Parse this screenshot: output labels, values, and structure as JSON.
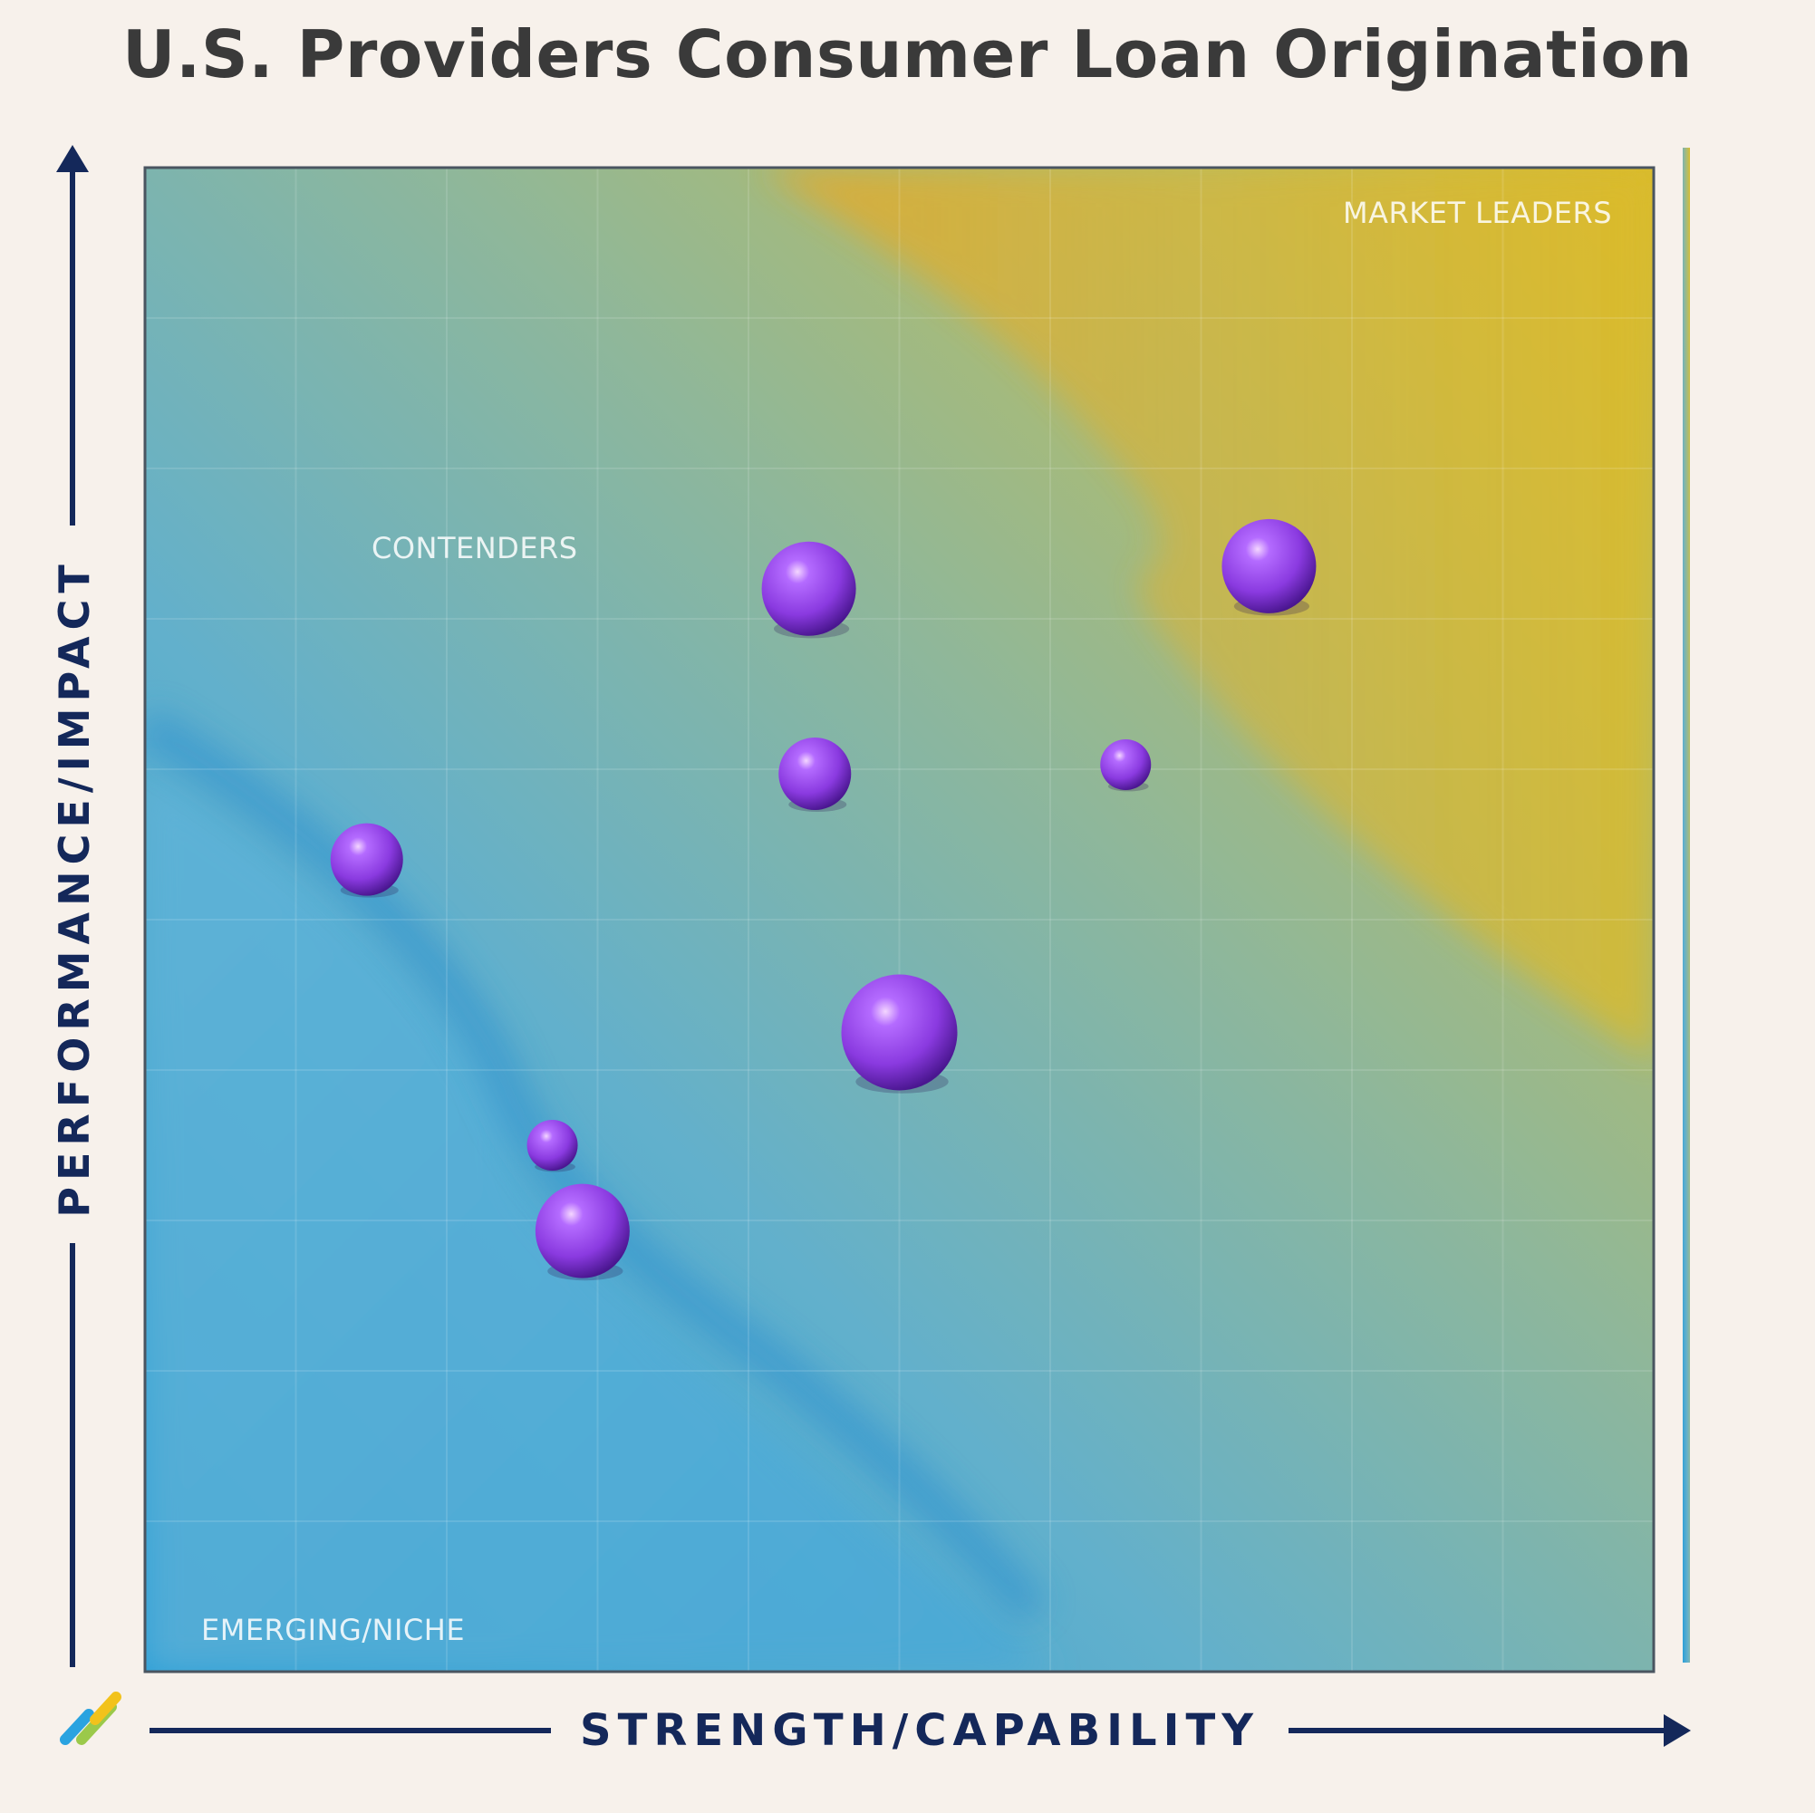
{
  "title": "U.S. Providers Consumer Loan Origination",
  "chart_data": {
    "type": "scatter",
    "title": "U.S. Providers Consumer Loan Origination",
    "xlabel": "STRENGTH/CAPABILITY",
    "ylabel": "PERFORMANCE/IMPACT",
    "xlim": [
      0,
      100
    ],
    "ylim": [
      0,
      100
    ],
    "zones": [
      "MARKET LEADERS",
      "CONTENDERS",
      "EMERGING/NICHE"
    ],
    "points": [
      {
        "x": 74.5,
        "y": 73.5,
        "size": 3
      },
      {
        "x": 44.0,
        "y": 72.0,
        "size": 3
      },
      {
        "x": 44.4,
        "y": 59.7,
        "size": 2
      },
      {
        "x": 65.0,
        "y": 60.3,
        "size": 1
      },
      {
        "x": 14.7,
        "y": 54.0,
        "size": 2
      },
      {
        "x": 50.0,
        "y": 42.5,
        "size": 4
      },
      {
        "x": 27.0,
        "y": 35.0,
        "size": 1
      },
      {
        "x": 29.0,
        "y": 29.3,
        "size": 3
      }
    ],
    "grid": true,
    "colors": {
      "bubble": "#8b3fd9",
      "leaders_zone": "#e8b12a",
      "contenders_zone": "#8eb99a",
      "emerging_zone": "#3ba3d6",
      "axis": "#14285a"
    }
  }
}
